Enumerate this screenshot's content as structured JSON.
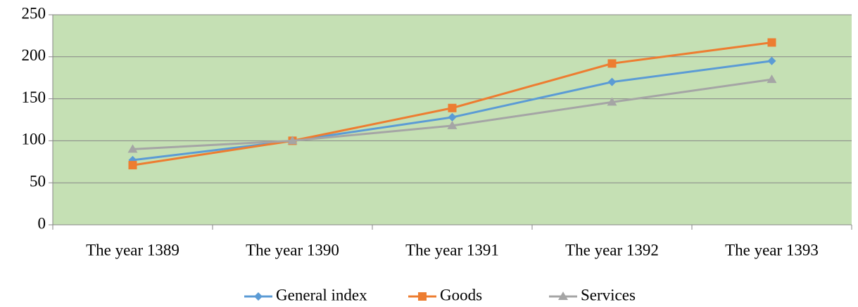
{
  "chart_data": {
    "type": "line",
    "categories": [
      "The year 1389",
      "The year 1390",
      "The year 1391",
      "The year 1392",
      "The year 1393"
    ],
    "series": [
      {
        "name": "General index",
        "color": "#5b9bd5",
        "marker": "diamond",
        "values": [
          77,
          100,
          128,
          170,
          195
        ]
      },
      {
        "name": "Goods",
        "color": "#ed7d31",
        "marker": "square",
        "values": [
          71,
          100,
          139,
          192,
          217
        ]
      },
      {
        "name": "Services",
        "color": "#a5a5a5",
        "marker": "triangle",
        "values": [
          90,
          100,
          118,
          146,
          173
        ]
      }
    ],
    "ylim": [
      0,
      250
    ],
    "yticks": [
      0,
      50,
      100,
      150,
      200,
      250
    ],
    "grid": true,
    "plot_background": "#c5e0b4",
    "legend": "bottom"
  }
}
